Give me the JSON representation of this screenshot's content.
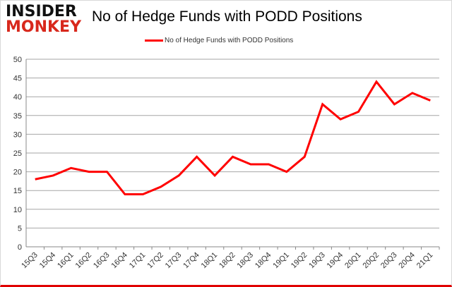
{
  "logo": {
    "line1": "INSIDER",
    "line2": "MONKEY"
  },
  "chart_data": {
    "type": "line",
    "title": "No of Hedge Funds with PODD Positions",
    "categories": [
      "15Q3",
      "15Q4",
      "16Q1",
      "16Q2",
      "16Q3",
      "16Q4",
      "17Q1",
      "17Q2",
      "17Q3",
      "17Q4",
      "18Q1",
      "18Q2",
      "18Q3",
      "18Q4",
      "19Q1",
      "19Q2",
      "19Q3",
      "19Q4",
      "20Q1",
      "20Q2",
      "20Q3",
      "20Q4",
      "21Q1"
    ],
    "series": [
      {
        "name": "No of Hedge Funds with PODD Positions",
        "color": "#ff0000",
        "values": [
          18,
          19,
          21,
          20,
          20,
          14,
          14,
          16,
          19,
          24,
          19,
          24,
          22,
          22,
          20,
          24,
          38,
          34,
          36,
          44,
          38,
          41,
          39
        ]
      }
    ],
    "ylim": [
      0,
      50
    ],
    "yticks": [
      0,
      5,
      10,
      15,
      20,
      25,
      30,
      35,
      40,
      45,
      50
    ],
    "grid": true,
    "legend": "top-center"
  }
}
